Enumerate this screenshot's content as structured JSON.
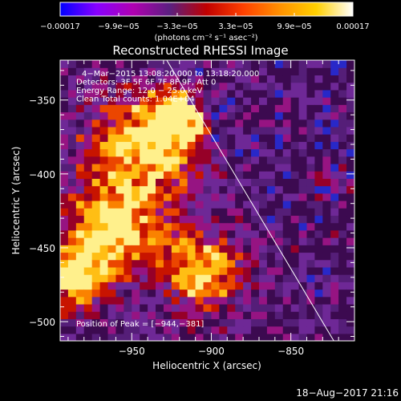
{
  "chart_data": {
    "type": "heatmap",
    "title": "Reconstructed RHESSI Image",
    "xlabel": "Heliocentric X (arcsec)",
    "ylabel": "Heliocentric Y (arcsec)",
    "xlim": [
      -995,
      -810
    ],
    "ylim": [
      -513,
      -323
    ],
    "x_ticks": [
      -950,
      -900,
      -850
    ],
    "y_ticks": [
      -350,
      -400,
      -450,
      -500
    ],
    "x_tick_labels": [
      "−950",
      "−900",
      "−850"
    ],
    "y_tick_labels": [
      "−350",
      "−400",
      "−450",
      "−500"
    ],
    "colorbar": {
      "range": [
        -0.00017,
        0.00017
      ],
      "tick_labels": [
        "−0.00017",
        "−9.9e−05",
        "−3.3e−05",
        "3.3e−05",
        "9.9e−05",
        "0.00017"
      ],
      "unit_label": "(photons cm⁻² s⁻¹ asec⁻²)",
      "colors": [
        "#0000ff",
        "#8800ff",
        "#b000b0",
        "#5a2080",
        "#c00000",
        "#ff4000",
        "#ff9000",
        "#ffd000",
        "#ffffff"
      ]
    },
    "annotations": [
      "4−Mar−2015 13:08:20.000 to 13:18:20.000",
      "Detectors: 3F 5F 6F 7F 8F 9F, Att 0",
      "Energy Range: 12.0 − 25.0 keV",
      "Clean     Total counts: 1.04E+04"
    ],
    "peak_label": "Position of Peak = [−944,−381]",
    "peak": [
      -944,
      -381
    ],
    "limb_line": [
      [
        -928,
        -323
      ],
      [
        -823,
        -513
      ]
    ],
    "bright_regions": [
      {
        "x": -943,
        "y": -383,
        "size": 25
      },
      {
        "x": -962,
        "y": -440,
        "size": 22
      },
      {
        "x": -905,
        "y": -465,
        "size": 18
      },
      {
        "x": -985,
        "y": -470,
        "size": 14
      },
      {
        "x": -920,
        "y": -360,
        "size": 14
      },
      {
        "x": -830,
        "y": -405,
        "size": 8
      }
    ]
  },
  "timestamp": "18−Aug−2017 21:16"
}
